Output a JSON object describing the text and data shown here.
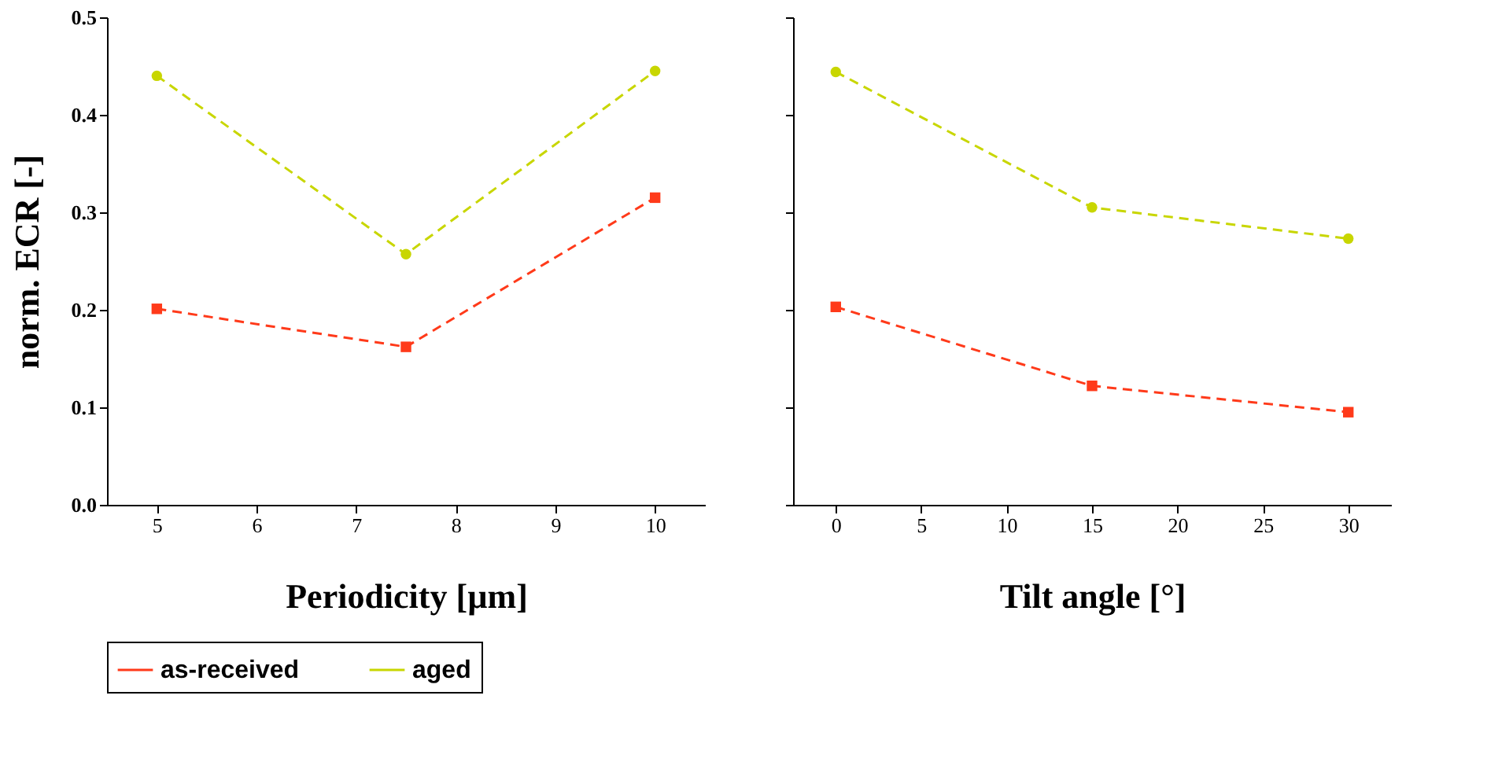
{
  "chart_data": [
    {
      "type": "line",
      "xlabel": "Periodicity [µm]",
      "ylabel": "norm. ECR [-]",
      "x": [
        5,
        7.5,
        10
      ],
      "xlim": [
        4.5,
        10.5
      ],
      "xticks": [
        5,
        6,
        7,
        8,
        9,
        10
      ],
      "ylim": [
        0,
        0.5
      ],
      "yticks": [
        {
          "value": 0,
          "label": "0.0"
        },
        0.1,
        0.2,
        0.3,
        0.4,
        0.5
      ],
      "line_style": "dashed",
      "legend": "bottom",
      "grid": false,
      "series": [
        {
          "name": "as-received",
          "color": "#ff3a1a",
          "marker": "square",
          "values": [
            0.201,
            0.162,
            0.315
          ]
        },
        {
          "name": "aged",
          "color": "#c8d600",
          "marker": "circle",
          "values": [
            0.44,
            0.257,
            0.445
          ]
        }
      ]
    },
    {
      "type": "line",
      "xlabel": "Tilt angle [°]",
      "x": [
        0,
        15,
        30
      ],
      "xlim": [
        -2.5,
        32.5
      ],
      "xticks": [
        0,
        5,
        10,
        15,
        20,
        25,
        30
      ],
      "ylim": [
        0,
        0.5
      ],
      "yticks": [
        0,
        0.1,
        0.2,
        0.3,
        0.4,
        0.5
      ],
      "tick_labels": "x",
      "line_style": "dashed",
      "grid": false,
      "series": [
        {
          "name": "as-received",
          "color": "#ff3a1a",
          "marker": "square",
          "values": [
            0.203,
            0.122,
            0.095
          ]
        },
        {
          "name": "aged",
          "color": "#c8d600",
          "marker": "circle",
          "values": [
            0.444,
            0.305,
            0.273
          ]
        }
      ]
    }
  ]
}
